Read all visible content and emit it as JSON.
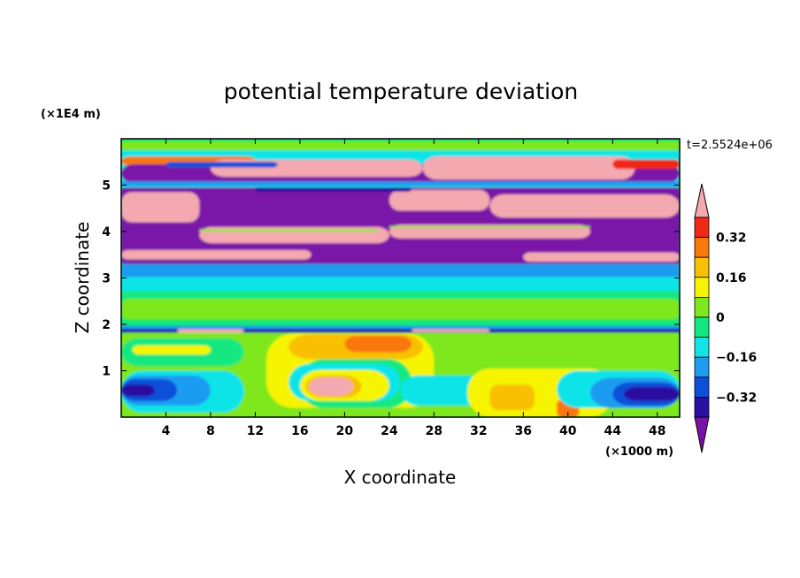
{
  "chart_data": {
    "type": "heatmap",
    "title": "potential temperature deviation",
    "xlabel": "X coordinate",
    "ylabel": "Z coordinate",
    "x_unit": "(×1000 m)",
    "y_unit": "(×1E4 m)",
    "time_label": "t=2.5524e+06",
    "xlim": [
      0,
      50
    ],
    "ylim": [
      0,
      6
    ],
    "x_ticks": [
      "4",
      "8",
      "12",
      "16",
      "20",
      "24",
      "28",
      "32",
      "36",
      "40",
      "44",
      "48"
    ],
    "y_ticks": [
      "1",
      "2",
      "3",
      "4",
      "5"
    ],
    "colorbar": {
      "levels": [
        -0.4,
        -0.32,
        -0.24,
        -0.16,
        -0.08,
        0,
        0.08,
        0.16,
        0.24,
        0.32,
        0.4
      ],
      "tick_labels": [
        "0.32",
        "0.16",
        "0",
        "−0.16",
        "−0.32"
      ],
      "colors": [
        "#7a12a8",
        "#2a0fa0",
        "#0c4fd8",
        "#1e9cf0",
        "#10e4e8",
        "#12e880",
        "#7ee81a",
        "#f6f400",
        "#f8c000",
        "#f87808",
        "#f02818",
        "#f4a8b0"
      ]
    },
    "regions": [
      {
        "level": "low",
        "description": "purple bands near z=5.5 and between z=3.3 and z=4.9"
      },
      {
        "level": "high",
        "description": "pink bands near z=5.3, z=4.5, z=3.5 and a warm blob near x=18, z=0.6"
      }
    ]
  }
}
